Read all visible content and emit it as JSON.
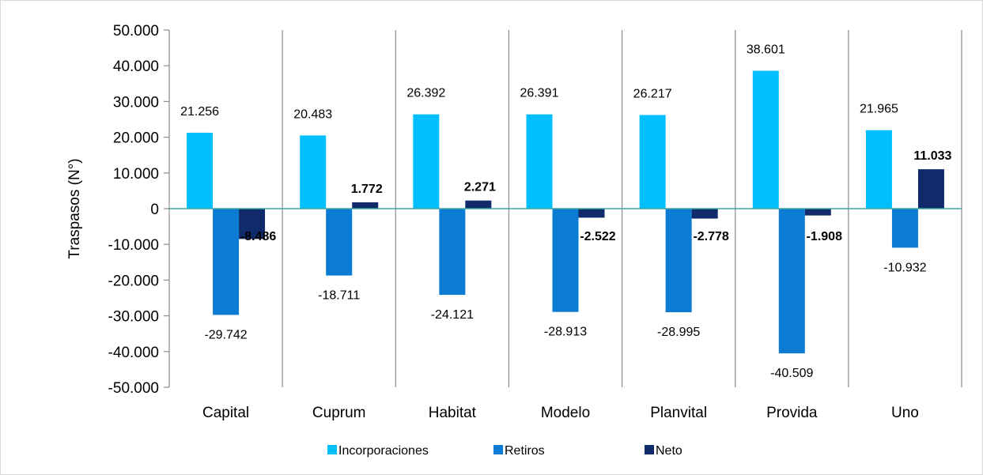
{
  "chart_data": {
    "type": "bar",
    "ylabel": "Traspasos (N°)",
    "ylim": [
      -50000,
      50000
    ],
    "ytick_step": 10000,
    "ytick_labels": [
      "50.000",
      "40.000",
      "30.000",
      "20.000",
      "10.000",
      "0",
      "-10.000",
      "-20.000",
      "-30.000",
      "-40.000",
      "-50.000"
    ],
    "categories": [
      "Capital",
      "Cuprum",
      "Habitat",
      "Modelo",
      "Planvital",
      "Provida",
      "Uno"
    ],
    "series": [
      {
        "name": "Incorporaciones",
        "color": "#00BFFF",
        "bold_labels": false,
        "values": [
          21256,
          20483,
          26392,
          26391,
          26217,
          38601,
          21965
        ],
        "labels": [
          "21.256",
          "20.483",
          "26.392",
          "26.391",
          "26.217",
          "38.601",
          "21.965"
        ]
      },
      {
        "name": "Retiros",
        "color": "#0B7BD3",
        "bold_labels": false,
        "values": [
          -29742,
          -18711,
          -24121,
          -28913,
          -28995,
          -40509,
          -10932
        ],
        "labels": [
          "-29.742",
          "-18.711",
          "-24.121",
          "-28.913",
          "-28.995",
          "-40.509",
          "-10.932"
        ]
      },
      {
        "name": "Neto",
        "color": "#0F2B6B",
        "bold_labels": true,
        "values": [
          -8486,
          1772,
          2271,
          -2522,
          -2778,
          -1908,
          11033
        ],
        "labels": [
          "-8.486",
          "1.772",
          "2.271",
          "-2.522",
          "-2.778",
          "-1.908",
          "11.033"
        ]
      }
    ],
    "grid": "vertical-category-separators",
    "zero_line_color": "#3FA7A0",
    "legend": "bottom-center"
  }
}
